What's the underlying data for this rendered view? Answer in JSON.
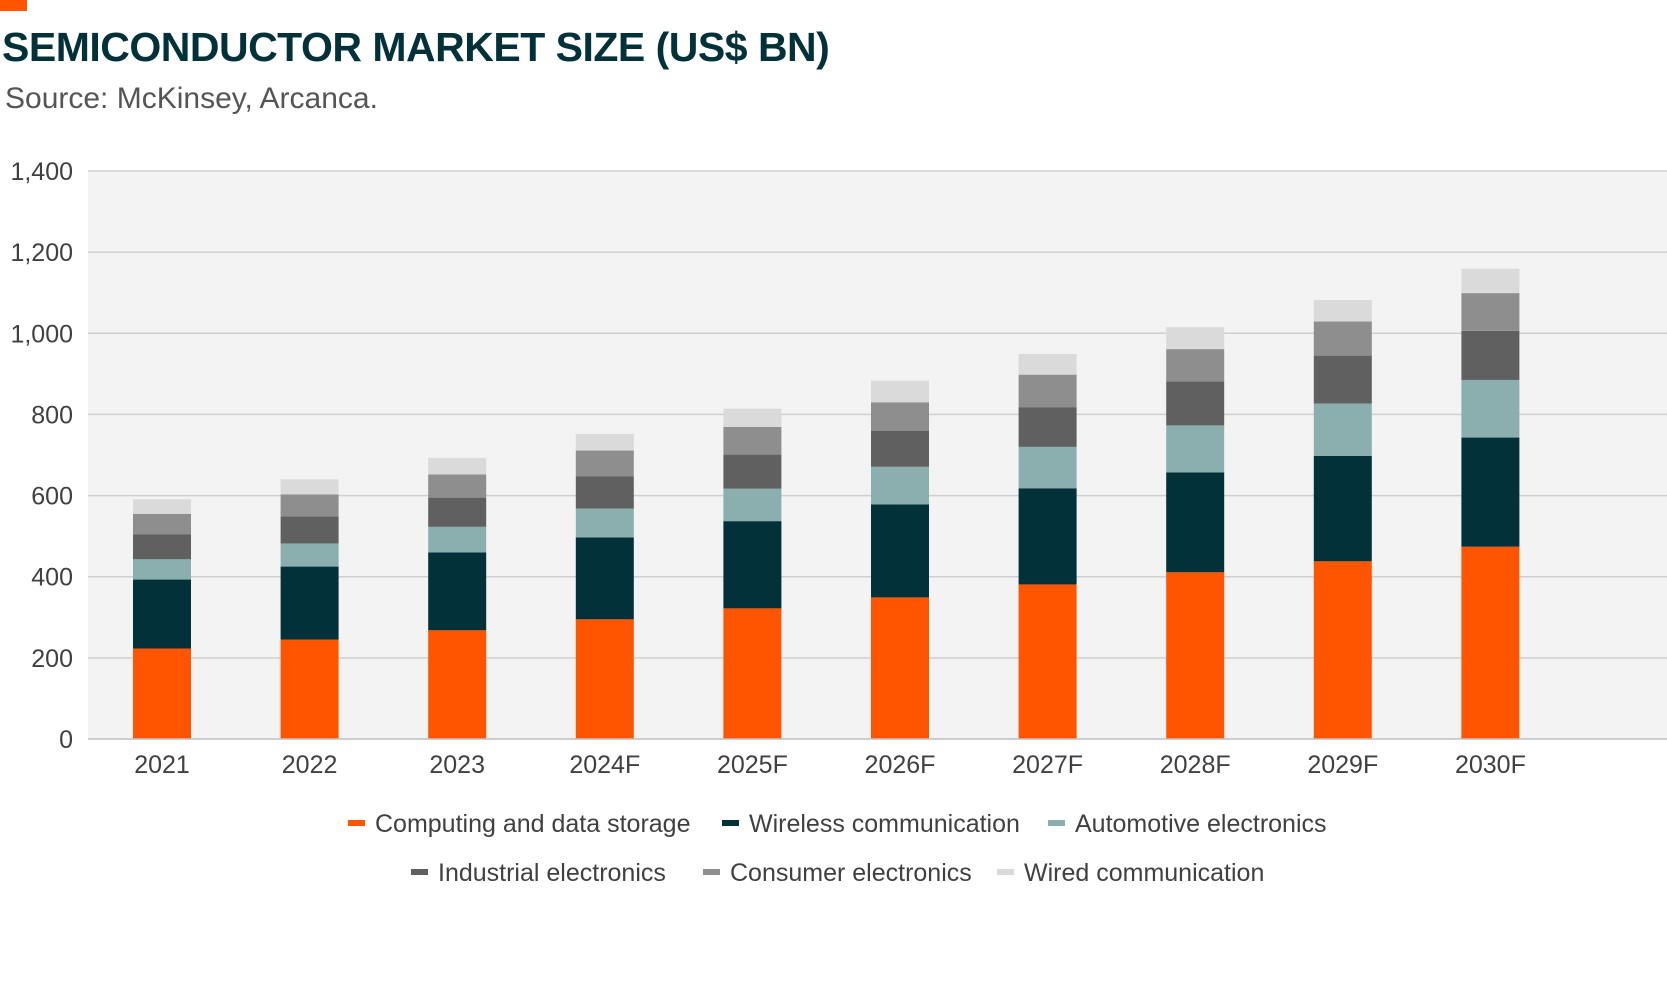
{
  "header": {
    "title": "SEMICONDUCTOR MARKET SIZE (US$ BN)",
    "subtitle": "Source: McKinsey, Arcanca."
  },
  "colors": {
    "accent": "#FF5500",
    "title": "#03313A",
    "plot_background": "#F3F3F3",
    "gridline": "#CFCFCF"
  },
  "chart_data": {
    "type": "bar",
    "stacked": true,
    "title": "SEMICONDUCTOR MARKET SIZE (US$ BN)",
    "subtitle": "Source: McKinsey, Arcanca.",
    "xlabel": "",
    "ylabel": "",
    "ylim": [
      0,
      1400
    ],
    "yticks": [
      0,
      200,
      400,
      600,
      800,
      1000,
      1200,
      1400
    ],
    "ytick_labels": [
      "0",
      "200",
      "400",
      "600",
      "800",
      "1,000",
      "1,200",
      "1,400"
    ],
    "grid": true,
    "legend_position": "bottom",
    "categories": [
      "2021",
      "2022",
      "2023",
      "2024F",
      "2025F",
      "2026F",
      "2027F",
      "2028F",
      "2029F",
      "2030F"
    ],
    "series": [
      {
        "name": "Computing and data storage",
        "color": "#FF5500",
        "values": [
          223,
          245,
          268,
          295,
          322,
          349,
          381,
          411,
          438,
          474
        ]
      },
      {
        "name": "Wireless communication",
        "color": "#03313A",
        "values": [
          170,
          180,
          192,
          202,
          215,
          229,
          237,
          246,
          260,
          269
        ]
      },
      {
        "name": "Automotive electronics",
        "color": "#8BAEAF",
        "values": [
          50,
          57,
          63,
          71,
          80,
          93,
          102,
          116,
          129,
          142
        ]
      },
      {
        "name": "Industrial electronics",
        "color": "#606060",
        "values": [
          61,
          67,
          72,
          79,
          84,
          89,
          98,
          108,
          118,
          121
        ]
      },
      {
        "name": "Consumer electronics",
        "color": "#8E8E8E",
        "values": [
          51,
          54,
          57,
          64,
          68,
          70,
          80,
          80,
          84,
          93
        ]
      },
      {
        "name": "Wired communication",
        "color": "#DADADA",
        "values": [
          36,
          37,
          41,
          41,
          45,
          53,
          51,
          54,
          53,
          60
        ]
      }
    ]
  }
}
